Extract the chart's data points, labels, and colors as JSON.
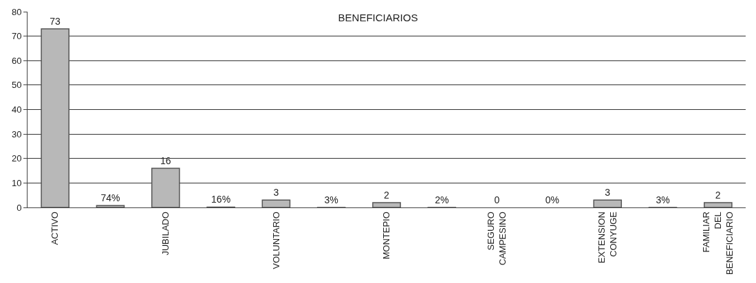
{
  "chart_data": {
    "type": "bar",
    "title": "BENEFICIARIOS",
    "categories": [
      "ACTIVO",
      null,
      "JUBILADO",
      null,
      "VOLUNTARIO",
      null,
      "MONTEPIO",
      null,
      "SEGURO CAMPESINO",
      null,
      "EXTENSION CONYUGE",
      null,
      "FAMILIAR DEL BENEFICIARIO"
    ],
    "values": [
      73,
      0.74,
      16,
      0.16,
      3,
      0.03,
      2,
      0.02,
      0,
      0,
      3,
      0.03,
      2
    ],
    "value_labels": [
      "73",
      "74%",
      "16",
      "16%",
      "3",
      "3%",
      "2",
      "2%",
      "0",
      "0%",
      "3",
      "3%",
      "2"
    ],
    "color": "#b8b8b8",
    "ylim": [
      0,
      80
    ],
    "yticks": [
      0,
      10,
      20,
      30,
      40,
      50,
      60,
      70,
      80
    ],
    "grid": "y",
    "legend": false
  }
}
